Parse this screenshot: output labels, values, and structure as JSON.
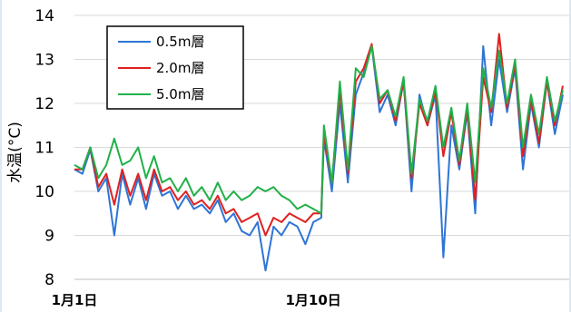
{
  "chart_data": {
    "type": "line",
    "title": "",
    "ylabel": "水温(°C)",
    "xlabel": "",
    "ylim": [
      8,
      14
    ],
    "yticks": [
      "8",
      "9",
      "10",
      "11",
      "12",
      "13",
      "14"
    ],
    "x_tick_labels": [
      {
        "label": "1月1日",
        "day": 1
      },
      {
        "label": "1月10日",
        "day": 10
      }
    ],
    "x_range_days": [
      1,
      19.4
    ],
    "grid": "horizontal",
    "legend_position": "top-left",
    "series": [
      {
        "name": "0.5m層",
        "color": "#2e75d6",
        "points": [
          [
            1.0,
            10.5
          ],
          [
            1.3,
            10.4
          ],
          [
            1.6,
            10.95
          ],
          [
            1.9,
            10.0
          ],
          [
            2.2,
            10.3
          ],
          [
            2.5,
            9.0
          ],
          [
            2.8,
            10.4
          ],
          [
            3.1,
            9.7
          ],
          [
            3.4,
            10.3
          ],
          [
            3.7,
            9.6
          ],
          [
            4.0,
            10.4
          ],
          [
            4.3,
            9.9
          ],
          [
            4.6,
            10.0
          ],
          [
            4.9,
            9.6
          ],
          [
            5.2,
            9.9
          ],
          [
            5.5,
            9.6
          ],
          [
            5.8,
            9.7
          ],
          [
            6.1,
            9.5
          ],
          [
            6.4,
            9.8
          ],
          [
            6.7,
            9.3
          ],
          [
            7.0,
            9.5
          ],
          [
            7.3,
            9.1
          ],
          [
            7.6,
            9.0
          ],
          [
            7.9,
            9.3
          ],
          [
            8.2,
            8.2
          ],
          [
            8.5,
            9.2
          ],
          [
            8.8,
            9.0
          ],
          [
            9.1,
            9.3
          ],
          [
            9.4,
            9.2
          ],
          [
            9.7,
            8.8
          ],
          [
            10.0,
            9.3
          ],
          [
            10.3,
            9.4
          ],
          [
            10.4,
            11.2
          ],
          [
            10.7,
            10.0
          ],
          [
            11.0,
            12.0
          ],
          [
            11.3,
            10.2
          ],
          [
            11.6,
            12.2
          ],
          [
            11.9,
            12.7
          ],
          [
            12.2,
            13.3
          ],
          [
            12.5,
            11.8
          ],
          [
            12.8,
            12.2
          ],
          [
            13.1,
            11.5
          ],
          [
            13.4,
            12.5
          ],
          [
            13.7,
            10.0
          ],
          [
            14.0,
            12.2
          ],
          [
            14.3,
            11.5
          ],
          [
            14.6,
            12.2
          ],
          [
            14.9,
            8.5
          ],
          [
            15.2,
            11.5
          ],
          [
            15.5,
            10.5
          ],
          [
            15.8,
            11.8
          ],
          [
            16.1,
            9.5
          ],
          [
            16.4,
            13.3
          ],
          [
            16.7,
            11.5
          ],
          [
            17.0,
            13.0
          ],
          [
            17.3,
            11.8
          ],
          [
            17.6,
            12.8
          ],
          [
            17.9,
            10.5
          ],
          [
            18.2,
            12.0
          ],
          [
            18.5,
            11.0
          ],
          [
            18.8,
            12.5
          ],
          [
            19.1,
            11.3
          ],
          [
            19.4,
            12.2
          ]
        ]
      },
      {
        "name": "2.0m層",
        "color": "#e02020",
        "points": [
          [
            1.0,
            10.5
          ],
          [
            1.3,
            10.5
          ],
          [
            1.6,
            11.0
          ],
          [
            1.9,
            10.1
          ],
          [
            2.2,
            10.4
          ],
          [
            2.5,
            9.7
          ],
          [
            2.8,
            10.5
          ],
          [
            3.1,
            9.9
          ],
          [
            3.4,
            10.4
          ],
          [
            3.7,
            9.8
          ],
          [
            4.0,
            10.5
          ],
          [
            4.3,
            10.0
          ],
          [
            4.6,
            10.1
          ],
          [
            4.9,
            9.8
          ],
          [
            5.2,
            10.0
          ],
          [
            5.5,
            9.7
          ],
          [
            5.8,
            9.8
          ],
          [
            6.1,
            9.6
          ],
          [
            6.4,
            9.9
          ],
          [
            6.7,
            9.5
          ],
          [
            7.0,
            9.6
          ],
          [
            7.3,
            9.3
          ],
          [
            7.6,
            9.4
          ],
          [
            7.9,
            9.5
          ],
          [
            8.2,
            9.0
          ],
          [
            8.5,
            9.4
          ],
          [
            8.8,
            9.3
          ],
          [
            9.1,
            9.5
          ],
          [
            9.4,
            9.4
          ],
          [
            9.7,
            9.3
          ],
          [
            10.0,
            9.5
          ],
          [
            10.3,
            9.5
          ],
          [
            10.4,
            11.3
          ],
          [
            10.7,
            10.2
          ],
          [
            11.0,
            12.3
          ],
          [
            11.3,
            10.4
          ],
          [
            11.6,
            12.5
          ],
          [
            11.9,
            12.8
          ],
          [
            12.2,
            13.35
          ],
          [
            12.5,
            12.0
          ],
          [
            12.8,
            12.3
          ],
          [
            13.1,
            11.6
          ],
          [
            13.4,
            12.5
          ],
          [
            13.7,
            10.3
          ],
          [
            14.0,
            12.0
          ],
          [
            14.3,
            11.5
          ],
          [
            14.6,
            12.3
          ],
          [
            14.9,
            10.8
          ],
          [
            15.2,
            11.8
          ],
          [
            15.5,
            10.6
          ],
          [
            15.8,
            11.9
          ],
          [
            16.1,
            9.8
          ],
          [
            16.4,
            12.6
          ],
          [
            16.7,
            11.8
          ],
          [
            17.0,
            13.58
          ],
          [
            17.3,
            11.9
          ],
          [
            17.6,
            12.9
          ],
          [
            17.9,
            10.8
          ],
          [
            18.2,
            12.1
          ],
          [
            18.5,
            11.1
          ],
          [
            18.8,
            12.5
          ],
          [
            19.1,
            11.5
          ],
          [
            19.4,
            12.4
          ]
        ]
      },
      {
        "name": "5.0m層",
        "color": "#22b04a",
        "points": [
          [
            1.0,
            10.6
          ],
          [
            1.3,
            10.5
          ],
          [
            1.6,
            11.0
          ],
          [
            1.9,
            10.3
          ],
          [
            2.2,
            10.6
          ],
          [
            2.5,
            11.2
          ],
          [
            2.8,
            10.6
          ],
          [
            3.1,
            10.7
          ],
          [
            3.4,
            11.0
          ],
          [
            3.7,
            10.3
          ],
          [
            4.0,
            10.8
          ],
          [
            4.3,
            10.2
          ],
          [
            4.6,
            10.3
          ],
          [
            4.9,
            10.0
          ],
          [
            5.2,
            10.3
          ],
          [
            5.5,
            9.9
          ],
          [
            5.8,
            10.1
          ],
          [
            6.1,
            9.8
          ],
          [
            6.4,
            10.2
          ],
          [
            6.7,
            9.8
          ],
          [
            7.0,
            10.0
          ],
          [
            7.3,
            9.8
          ],
          [
            7.6,
            9.9
          ],
          [
            7.9,
            10.1
          ],
          [
            8.2,
            10.0
          ],
          [
            8.5,
            10.1
          ],
          [
            8.8,
            9.9
          ],
          [
            9.1,
            9.8
          ],
          [
            9.4,
            9.6
          ],
          [
            9.7,
            9.7
          ],
          [
            10.0,
            9.6
          ],
          [
            10.3,
            9.5
          ],
          [
            10.4,
            11.5
          ],
          [
            10.7,
            10.2
          ],
          [
            11.0,
            12.5
          ],
          [
            11.3,
            10.5
          ],
          [
            11.6,
            12.8
          ],
          [
            11.9,
            12.6
          ],
          [
            12.2,
            13.3
          ],
          [
            12.5,
            12.1
          ],
          [
            12.8,
            12.3
          ],
          [
            13.1,
            11.7
          ],
          [
            13.4,
            12.6
          ],
          [
            13.7,
            10.4
          ],
          [
            14.0,
            12.1
          ],
          [
            14.3,
            11.6
          ],
          [
            14.6,
            12.4
          ],
          [
            14.9,
            11.0
          ],
          [
            15.2,
            11.9
          ],
          [
            15.5,
            10.7
          ],
          [
            15.8,
            12.0
          ],
          [
            16.1,
            10.2
          ],
          [
            16.4,
            12.8
          ],
          [
            16.7,
            11.9
          ],
          [
            17.0,
            13.2
          ],
          [
            17.3,
            12.0
          ],
          [
            17.6,
            13.0
          ],
          [
            17.9,
            11.0
          ],
          [
            18.2,
            12.2
          ],
          [
            18.5,
            11.3
          ],
          [
            18.8,
            12.6
          ],
          [
            19.1,
            11.6
          ],
          [
            19.4,
            12.3
          ]
        ]
      }
    ]
  }
}
